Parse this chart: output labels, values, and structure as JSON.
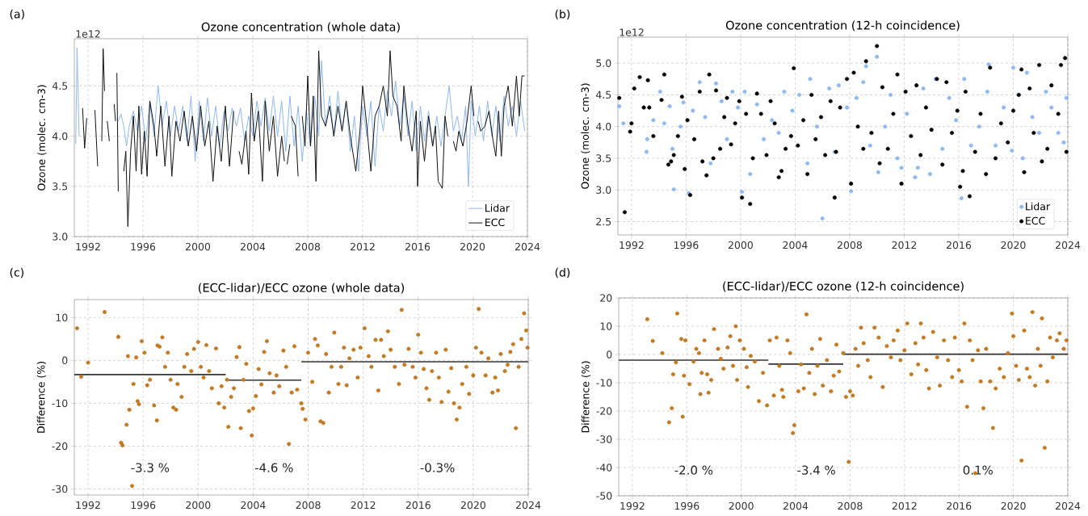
{
  "chart_data": [
    {
      "type": "line",
      "title": "Ozone concentration (whole data)",
      "ylabel": "Ozone (molec. cm-3)",
      "annotations": [
        "(a)",
        "1e12"
      ],
      "xlim": [
        1991,
        2024
      ],
      "ylim": [
        3.0,
        4.97
      ],
      "xticks": [
        1992,
        1996,
        2000,
        2004,
        2008,
        2012,
        2016,
        2020,
        2024
      ],
      "yticks": [
        {
          "value": 3.0,
          "label": "3.0"
        },
        {
          "value": 3.5,
          "label": "3.5"
        },
        {
          "value": 4.0,
          "label": "4.0"
        },
        {
          "value": 4.5,
          "label": "4.5"
        }
      ],
      "grid": true,
      "legend": "bottom right",
      "series": [
        {
          "name": "Lidar",
          "color": "#8fb8ee",
          "x": [
            1991.1,
            1991.2,
            1991.35,
            1991.5,
            1994.2,
            1994.4,
            1994.6,
            1994.8,
            1995.0,
            1995.3,
            1995.6,
            1995.9,
            1996.2,
            1996.5,
            1996.8,
            1997.1,
            1997.4,
            1997.7,
            1998.0,
            1998.3,
            1998.6,
            1998.9,
            1999.2,
            1999.5,
            1999.8,
            2000.1,
            2000.4,
            2000.7,
            2001.0,
            2001.3,
            2001.6,
            2001.9,
            2002.2,
            2002.5,
            2002.8,
            2003.1,
            2003.4,
            2003.7,
            2004.0,
            2004.3,
            2004.6,
            2004.9,
            2005.2,
            2005.5,
            2005.8,
            2006.1,
            2006.4,
            2006.7,
            2007.0,
            2007.3,
            2007.6,
            2007.9,
            2008.2,
            2008.5,
            2008.8,
            2009.0,
            2009.3,
            2009.6,
            2009.9,
            2010.2,
            2010.5,
            2010.8,
            2011.1,
            2011.4,
            2011.7,
            2012.0,
            2012.3,
            2012.6,
            2012.9,
            2013.2,
            2013.5,
            2013.8,
            2014.1,
            2014.4,
            2014.7,
            2015.0,
            2015.3,
            2015.6,
            2015.9,
            2016.2,
            2016.5,
            2016.8,
            2017.1,
            2017.4,
            2017.7,
            2018.0,
            2018.3,
            2018.6,
            2018.9,
            2019.2,
            2019.5,
            2019.7,
            2019.9,
            2020.2,
            2020.5,
            2020.8,
            2021.1,
            2021.4,
            2021.7,
            2022.0,
            2022.3,
            2022.6,
            2022.9,
            2023.2,
            2023.5,
            2023.8
          ],
          "values": [
            3.92,
            4.88,
            4.0,
            null,
            4.15,
            4.22,
            4.1,
            3.9,
            4.1,
            4.25,
            4.05,
            4.3,
            3.95,
            4.35,
            4.0,
            4.5,
            4.1,
            4.35,
            4.0,
            4.3,
            4.05,
            4.3,
            3.95,
            4.4,
            3.75,
            4.35,
            3.95,
            4.38,
            4.0,
            4.3,
            3.9,
            4.25,
            4.05,
            4.28,
            4.1,
            4.28,
            3.95,
            4.2,
            4.0,
            4.35,
            4.1,
            4.38,
            4.05,
            4.4,
            4.0,
            4.35,
            3.85,
            4.4,
            3.9,
            4.3,
            3.75,
            4.25,
            3.9,
            4.4,
            4.0,
            4.75,
            4.1,
            4.4,
            4.0,
            4.45,
            4.05,
            4.35,
            3.85,
            4.2,
            3.65,
            4.3,
            4.0,
            4.35,
            3.7,
            4.3,
            4.05,
            4.45,
            4.2,
            4.55,
            4.1,
            4.4,
            4.0,
            4.35,
            3.85,
            4.3,
            3.95,
            4.25,
            3.9,
            4.2,
            3.9,
            4.2,
            4.5,
            4.05,
            4.2,
            3.95,
            4.3,
            3.5,
            4.35,
            4.0,
            4.3,
            3.95,
            4.35,
            4.0,
            4.3,
            3.95,
            4.4,
            4.1,
            4.3,
            4.0,
            4.35,
            4.05
          ]
        },
        {
          "name": "ECC",
          "color": "#111111",
          "x": [
            1991.6,
            1991.75,
            1991.9,
            1992.1,
            1992.5,
            1992.7,
            1992.8,
            1993.0,
            1993.1,
            1993.2,
            1993.3,
            1993.4,
            1993.55,
            1993.7,
            1993.9,
            1994.0,
            1994.05,
            1994.1,
            1994.2,
            1994.4,
            1994.6,
            1994.75,
            1994.9,
            1995.1,
            1995.3,
            1995.5,
            1995.7,
            1995.9,
            1996.1,
            1996.3,
            1996.5,
            1996.8,
            1997.0,
            1997.3,
            1997.6,
            1997.9,
            1998.1,
            1998.4,
            1998.7,
            1999.0,
            1999.3,
            1999.6,
            1999.9,
            2000.2,
            2000.5,
            2000.8,
            2001.1,
            2001.4,
            2001.7,
            2002.0,
            2002.3,
            2002.6,
            2002.8,
            2003.0,
            2003.2,
            2003.5,
            2003.7,
            2003.9,
            2004.1,
            2004.4,
            2004.7,
            2004.9,
            2005.2,
            2005.5,
            2005.8,
            2006.1,
            2006.3,
            2006.45,
            2006.5,
            2006.7,
            2006.75,
            2006.8,
            2007.1,
            2007.3,
            2007.45,
            2007.6,
            2007.8,
            2008.0,
            2008.2,
            2008.4,
            2008.6,
            2008.8,
            2009.0,
            2009.3,
            2009.6,
            2009.9,
            2010.2,
            2010.5,
            2010.8,
            2011.1,
            2011.5,
            2011.8,
            2012.0,
            2012.3,
            2012.6,
            2012.9,
            2013.2,
            2013.5,
            2013.8,
            2014.0,
            2014.2,
            2014.5,
            2014.8,
            2015.0,
            2015.3,
            2015.6,
            2015.9,
            2016.0,
            2016.2,
            2016.5,
            2016.8,
            2017.1,
            2017.3,
            2017.5,
            2017.8,
            2018.0,
            2018.2,
            2018.4,
            2018.6,
            2018.8,
            2019.0,
            2019.3,
            2019.6,
            2019.9,
            2020.1,
            2020.25,
            2020.4,
            2020.6,
            2020.9,
            2021.2,
            2021.5,
            2021.7,
            2021.9,
            2022.1,
            2022.3,
            2022.6,
            2022.9,
            2023.2,
            2023.4,
            2023.6,
            2023.8
          ],
          "values": [
            4.28,
            3.88,
            4.18,
            null,
            4.26,
            3.7,
            null,
            3.95,
            4.87,
            4.45,
            null,
            4.15,
            3.95,
            null,
            4.32,
            4.15,
            null,
            4.63,
            3.45,
            null,
            3.65,
            3.85,
            3.1,
            3.85,
            4.2,
            3.65,
            4.3,
            3.62,
            4.05,
            3.6,
            4.35,
            4.1,
            3.8,
            4.3,
            3.7,
            4.2,
            3.6,
            4.15,
            3.95,
            4.25,
            3.9,
            4.2,
            3.85,
            4.3,
            3.9,
            4.15,
            3.55,
            4.1,
            3.75,
            4.3,
            3.7,
            4.25,
            null,
            3.85,
            3.72,
            4.05,
            3.62,
            4.43,
            3.95,
            4.25,
            3.55,
            4.35,
            3.85,
            4.2,
            3.6,
            4.0,
            3.75,
            null,
            3.72,
            3.92,
            null,
            4.2,
            4.1,
            3.6,
            null,
            4.2,
            3.9,
            4.6,
            3.9,
            4.4,
            3.55,
            4.85,
            4.2,
            4.1,
            4.3,
            4.0,
            4.3,
            4.05,
            4.35,
            4.0,
            3.65,
            4.05,
            4.5,
            4.1,
            3.65,
            4.2,
            4.3,
            4.5,
            4.2,
            4.85,
            4.4,
            4.3,
            3.95,
            4.5,
            4.1,
            3.85,
            4.25,
            3.5,
            4.15,
            3.75,
            4.2,
            3.9,
            4.1,
            3.55,
            3.48,
            4.2,
            4.0,
            null,
            3.95,
            3.85,
            4.05,
            3.9,
            4.15,
            4.5,
            4.2,
            null,
            4.15,
            4.05,
            4.1,
            4.25,
            3.95,
            3.8,
            4.25,
            3.8,
            4.3,
            4.5,
            4.1,
            4.6,
            4.2,
            4.6,
            4.6
          ]
        }
      ]
    },
    {
      "type": "scatter",
      "title": "Ozone concentration (12-h coincidence)",
      "ylabel": "Ozone (molec. cm-3)",
      "annotations": [
        "(b)",
        "1e12"
      ],
      "xlim": [
        1991,
        2024
      ],
      "ylim": [
        2.29,
        5.41
      ],
      "xticks": [
        1992,
        1996,
        2000,
        2004,
        2008,
        2012,
        2016,
        2020,
        2024
      ],
      "yticks": [
        {
          "value": 2.5,
          "label": "2.5"
        },
        {
          "value": 3.0,
          "label": "3.0"
        },
        {
          "value": 3.5,
          "label": "3.5"
        },
        {
          "value": 4.0,
          "label": "4.0"
        },
        {
          "value": 4.5,
          "label": "4.5"
        },
        {
          "value": 5.0,
          "label": "5.0"
        }
      ],
      "grid": true,
      "legend": "bottom right",
      "series": [
        {
          "name": "Lidar",
          "color": "#8fb8ee",
          "marker": "circle",
          "x": [
            1991.1,
            1991.4,
            1993.1,
            1993.15,
            1993.6,
            1994.1,
            1994.4,
            1994.8,
            1995.0,
            1995.1,
            1995.6,
            1995.8,
            1996.2,
            1996.5,
            1997.0,
            1997.4,
            1997.8,
            1998.2,
            1998.6,
            1999.0,
            1999.4,
            1999.8,
            2000.1,
            2000.3,
            2000.7,
            2001.2,
            2001.7,
            2002.3,
            2002.8,
            2003.2,
            2003.8,
            2004.3,
            2004.9,
            2005.1,
            2005.6,
            2006.0,
            2006.5,
            2006.9,
            2007.2,
            2007.8,
            2008.1,
            2008.5,
            2009.0,
            2009.2,
            2009.5,
            2010.0,
            2010.1,
            2010.6,
            2011.0,
            2011.5,
            2011.8,
            2012.2,
            2012.8,
            2013.0,
            2013.4,
            2013.9,
            2014.3,
            2014.8,
            2015.3,
            2015.8,
            2016.2,
            2016.4,
            2016.9,
            2017.5,
            2018.1,
            2018.2,
            2018.7,
            2019.3,
            2019.9,
            2020.0,
            2020.4,
            2020.7,
            2021.0,
            2021.4,
            2021.9,
            2022.4,
            2022.8,
            2023.3,
            2023.7,
            2023.9
          ],
          "values": [
            4.32,
            4.05,
            3.6,
            3.8,
            4.1,
            4.55,
            4.05,
            4.32,
            3.65,
            3.01,
            4.0,
            4.38,
            2.95,
            4.25,
            4.7,
            4.15,
            3.42,
            4.68,
            4.4,
            3.8,
            4.55,
            4.3,
            2.97,
            4.55,
            3.25,
            4.35,
            3.8,
            4.1,
            3.9,
            4.55,
            4.25,
            4.5,
            3.42,
            4.75,
            4.0,
            2.55,
            4.6,
            3.6,
            4.65,
            4.3,
            2.98,
            4.45,
            4.7,
            4.95,
            3.7,
            5.1,
            3.28,
            4.0,
            4.5,
            3.5,
            3.35,
            4.2,
            3.2,
            3.35,
            4.6,
            3.25,
            4.75,
            3.65,
            4.45,
            4.1,
            2.87,
            4.75,
            3.7,
            4.0,
            4.55,
            4.98,
            3.7,
            4.3,
            3.62,
            4.93,
            4.5,
            3.5,
            4.85,
            4.15,
            3.9,
            4.55,
            4.3,
            3.9,
            3.75,
            4.45
          ]
        },
        {
          "name": "ECC",
          "color": "#000000",
          "marker": "circle",
          "x": [
            1991.1,
            1991.5,
            1991.9,
            1992.0,
            1992.2,
            1992.6,
            1992.9,
            1993.2,
            1993.3,
            1993.6,
            1994.2,
            1994.4,
            1994.7,
            1994.9,
            1995.1,
            1995.4,
            1995.7,
            1995.9,
            1996.1,
            1996.3,
            1996.6,
            1997.0,
            1997.2,
            1997.5,
            1997.7,
            1998.0,
            1998.2,
            1998.5,
            1998.8,
            1999.0,
            1999.3,
            1999.6,
            1999.9,
            2000.1,
            2000.4,
            2000.7,
            2000.9,
            2001.2,
            2001.5,
            2001.9,
            2002.2,
            2002.5,
            2002.8,
            2003.0,
            2003.3,
            2003.7,
            2003.9,
            2004.2,
            2004.6,
            2004.9,
            2005.2,
            2005.5,
            2005.9,
            2006.2,
            2006.6,
            2006.9,
            2007.0,
            2007.3,
            2007.8,
            2008.1,
            2008.3,
            2008.6,
            2009.0,
            2009.2,
            2009.6,
            2010.0,
            2010.2,
            2010.4,
            2010.8,
            2011.2,
            2011.5,
            2011.8,
            2012.1,
            2012.5,
            2012.9,
            2013.2,
            2013.6,
            2014.0,
            2014.4,
            2014.8,
            2015.1,
            2015.5,
            2015.9,
            2016.1,
            2016.3,
            2016.5,
            2016.8,
            2017.2,
            2017.6,
            2018.0,
            2018.3,
            2018.7,
            2019.1,
            2019.6,
            2020.0,
            2020.4,
            2020.6,
            2020.8,
            2021.2,
            2021.5,
            2021.9,
            2022.1,
            2022.5,
            2022.8,
            2023.3,
            2023.5,
            2023.8,
            2023.9
          ],
          "values": [
            4.45,
            2.65,
            3.92,
            4.05,
            4.6,
            4.78,
            4.3,
            4.73,
            4.3,
            3.85,
            4.42,
            4.82,
            3.4,
            3.45,
            3.55,
            3.85,
            4.47,
            3.33,
            4.1,
            2.92,
            3.8,
            4.55,
            3.45,
            3.23,
            4.82,
            3.5,
            4.57,
            3.65,
            4.15,
            4.45,
            3.72,
            4.05,
            4.4,
            2.88,
            4.2,
            2.78,
            3.5,
            4.52,
            4.2,
            3.55,
            4.4,
            4.05,
            3.2,
            3.3,
            3.65,
            3.85,
            4.92,
            3.7,
            4.1,
            3.25,
            4.5,
            3.8,
            4.15,
            3.55,
            4.4,
            2.88,
            3.6,
            4.3,
            4.75,
            3.1,
            4.85,
            4.0,
            3.65,
            5.03,
            3.9,
            5.27,
            3.42,
            4.62,
            3.65,
            4.2,
            4.82,
            3.1,
            4.55,
            3.85,
            4.65,
            3.55,
            4.3,
            3.95,
            4.75,
            3.4,
            4.7,
            3.9,
            4.25,
            3.05,
            3.3,
            4.55,
            2.9,
            3.6,
            4.2,
            3.25,
            4.93,
            3.5,
            4.05,
            3.75,
            4.25,
            4.5,
            4.9,
            3.28,
            4.6,
            3.9,
            4.97,
            3.45,
            3.65,
            4.65,
            4.2,
            4.97,
            5.08,
            3.6
          ]
        }
      ]
    },
    {
      "type": "scatter",
      "title": "(ECC-lidar)/ECC ozone (whole data)",
      "ylabel": "Difference (%)",
      "annotations": [
        "(c)",
        "-3.3 %",
        "-4.6 %",
        "-0.3%"
      ],
      "xlim": [
        1991,
        2024
      ],
      "ylim": [
        -31.4,
        14.2
      ],
      "xticks": [
        1992,
        1996,
        2000,
        2004,
        2008,
        2012,
        2016,
        2020,
        2024
      ],
      "yticks": [
        -30,
        -20,
        -10,
        0,
        10
      ],
      "grid": true,
      "series": [
        {
          "color": "#c07a24",
          "marker": "circle",
          "x": [
            1991.2,
            1991.5,
            1992.0,
            1993.2,
            1994.2,
            1994.4,
            1994.5,
            1994.8,
            1995.0,
            1994.9,
            1995.2,
            1995.3,
            1995.5,
            1995.6,
            1995.7,
            1995.9,
            1996.1,
            1996.3,
            1996.5,
            1996.8,
            1997.0,
            1997.05,
            1997.2,
            1997.4,
            1997.6,
            1997.8,
            1998.0,
            1998.2,
            1998.4,
            1998.5,
            1998.8,
            1999.0,
            1999.2,
            1999.5,
            1999.7,
            2000.0,
            2000.2,
            2000.4,
            2000.6,
            2000.8,
            2001.0,
            2001.3,
            2001.5,
            2001.7,
            2001.9,
            2002.1,
            2002.2,
            2002.4,
            2002.6,
            2002.8,
            2003.0,
            2003.1,
            2003.3,
            2003.5,
            2003.7,
            2003.9,
            2004.0,
            2004.2,
            2004.4,
            2004.6,
            2004.8,
            2005.0,
            2005.2,
            2005.5,
            2005.7,
            2005.9,
            2006.2,
            2006.4,
            2006.6,
            2006.8,
            2007.0,
            2007.2,
            2007.5,
            2007.6,
            2007.8,
            2008.0,
            2008.3,
            2008.5,
            2008.7,
            2008.9,
            2009.1,
            2009.3,
            2009.5,
            2009.7,
            2009.9,
            2010.2,
            2010.4,
            2010.6,
            2010.8,
            2011.0,
            2011.3,
            2011.6,
            2011.8,
            2012.1,
            2012.4,
            2012.6,
            2012.9,
            2013.1,
            2013.3,
            2013.5,
            2013.8,
            2014.0,
            2014.3,
            2014.6,
            2014.8,
            2015.0,
            2015.3,
            2015.6,
            2015.8,
            2016.0,
            2016.2,
            2016.4,
            2016.6,
            2016.8,
            2017.0,
            2017.3,
            2017.5,
            2017.7,
            2018.0,
            2018.2,
            2018.4,
            2018.6,
            2018.8,
            2019.0,
            2019.2,
            2019.5,
            2019.7,
            2020.0,
            2020.2,
            2020.4,
            2020.6,
            2020.9,
            2021.1,
            2021.4,
            2021.6,
            2021.8,
            2022.0,
            2022.3,
            2022.5,
            2022.7,
            2022.9,
            2023.1,
            2023.3,
            2023.5,
            2023.7,
            2023.85,
            2023.95
          ],
          "values": [
            7.5,
            -3.8,
            -0.5,
            11.3,
            5.5,
            -19.2,
            -19.8,
            -15,
            -11.5,
            1.0,
            -29.3,
            -5.5,
            0.7,
            -9.5,
            -10.2,
            4.5,
            1.8,
            -5.8,
            -4.5,
            -10.5,
            -14,
            3.5,
            3.2,
            5.4,
            -1.5,
            1.8,
            -4.5,
            -11,
            -11.5,
            -5.5,
            -8.5,
            -1.5,
            1.5,
            -2.5,
            2.7,
            4.3,
            -1.5,
            -4,
            3.6,
            -2.5,
            -6.5,
            2.8,
            -10,
            -6,
            -11,
            -4.5,
            -15.5,
            -8.5,
            -6.5,
            0.8,
            3.1,
            -15.8,
            -4.5,
            -0.8,
            -11.8,
            -17.5,
            -11.2,
            -8.3,
            -2,
            -5.6,
            2,
            4.5,
            -3,
            -7.5,
            -3.5,
            -6,
            2.3,
            -1.5,
            -19.5,
            -7.5,
            3.3,
            -6.8,
            -10,
            -11.3,
            -13.8,
            1.8,
            -5,
            5,
            3.5,
            -14.2,
            -14.6,
            1.5,
            -7.5,
            -1.5,
            6.5,
            -5.5,
            -1.5,
            3,
            -5.8,
            0.5,
            2.5,
            -4,
            3,
            7.5,
            1,
            -1.5,
            4.8,
            -7,
            4.8,
            1,
            6.8,
            2.5,
            -1.5,
            -5.5,
            11.8,
            -1,
            2.7,
            -1.5,
            -4,
            6,
            1.8,
            -2,
            -6.5,
            -9.2,
            -2.5,
            1.8,
            -4,
            -9.7,
            2.5,
            -7.3,
            -1.8,
            -10,
            -13.8,
            -11,
            -5.5,
            -1.5,
            -7.8,
            -3.5,
            3,
            12,
            1.8,
            -3.5,
            0.5,
            -7.5,
            -4,
            -7,
            1.5,
            -2.5,
            -1,
            2,
            3.8,
            -15.8,
            -1.5,
            5,
            11,
            7,
            3
          ]
        },
        {
          "type": "line",
          "marker": "none",
          "color": "#333333",
          "x": [
            1991,
            2002
          ],
          "values": [
            -3.3,
            -3.3
          ]
        },
        {
          "type": "line",
          "marker": "none",
          "color": "#333333",
          "x": [
            2002,
            2007.5
          ],
          "values": [
            -4.6,
            -4.6
          ]
        },
        {
          "type": "line",
          "marker": "none",
          "color": "#333333",
          "x": [
            2007.5,
            2024
          ],
          "values": [
            -0.3,
            -0.3
          ]
        }
      ]
    },
    {
      "type": "scatter",
      "title": "(ECC-lidar)/ECC ozone (12-h coincidence)",
      "ylabel": "Difference (%)",
      "annotations": [
        "(d)",
        "-2.0 %",
        "-3.4 %",
        "0.1%"
      ],
      "xlim": [
        1991,
        2024
      ],
      "ylim": [
        -50,
        20
      ],
      "xticks": [
        1992,
        1996,
        2000,
        2004,
        2008,
        2012,
        2016,
        2020,
        2024
      ],
      "yticks": [
        -50,
        -40,
        -30,
        -20,
        -10,
        0,
        10,
        20
      ],
      "grid": true,
      "series": [
        {
          "color": "#c07a24",
          "marker": "circle",
          "x": [
            1993.1,
            1993.5,
            1994.2,
            1994.7,
            1994.9,
            1995.0,
            1995.2,
            1995.3,
            1995.6,
            1995.7,
            1995.8,
            1995.9,
            1996.2,
            1996.5,
            1996.7,
            1996.9,
            1997.0,
            1997.1,
            1997.3,
            1997.5,
            1997.6,
            1997.8,
            1998.0,
            1998.3,
            1998.5,
            1998.7,
            1999.0,
            1999.2,
            1999.4,
            1999.6,
            1999.7,
            1999.9,
            2000.2,
            2000.4,
            2000.5,
            2000.7,
            2001.0,
            2001.3,
            2001.6,
            2001.9,
            2002.1,
            2002.4,
            2002.6,
            2002.8,
            2003.0,
            2003.1,
            2003.4,
            2003.6,
            2003.8,
            2003.9,
            2004.2,
            2004.4,
            2004.6,
            2004.8,
            2005.0,
            2005.2,
            2005.4,
            2005.6,
            2005.8,
            2006.0,
            2006.3,
            2006.6,
            2006.8,
            2007.0,
            2007.2,
            2007.5,
            2007.7,
            2007.9,
            2008.0,
            2008.2,
            2008.4,
            2008.6,
            2008.8,
            2009.0,
            2009.3,
            2009.5,
            2009.8,
            2010.1,
            2010.4,
            2010.7,
            2011.0,
            2011.2,
            2011.5,
            2011.7,
            2012.0,
            2012.2,
            2012.5,
            2012.8,
            2013.0,
            2013.2,
            2013.4,
            2013.6,
            2013.8,
            2014.1,
            2014.4,
            2014.6,
            2014.9,
            2015.2,
            2015.5,
            2015.7,
            2016.0,
            2016.2,
            2016.4,
            2016.6,
            2016.8,
            2017.0,
            2017.2,
            2017.4,
            2017.6,
            2017.8,
            2018.0,
            2018.3,
            2018.5,
            2018.7,
            2019.0,
            2019.3,
            2019.6,
            2019.9,
            2020.0,
            2020.2,
            2020.4,
            2020.6,
            2020.8,
            2021.0,
            2021.2,
            2021.4,
            2021.6,
            2021.8,
            2022.0,
            2022.1,
            2022.3,
            2022.5,
            2022.7,
            2022.9,
            2023.2,
            2023.4,
            2023.7,
            2023.9
          ],
          "values": [
            12.5,
            4.8,
            0.5,
            -24,
            -19,
            -7,
            -2.8,
            14.5,
            5.5,
            -22,
            -7.5,
            5,
            -10.5,
            -2.5,
            2,
            0.5,
            -14,
            -6.5,
            5,
            -7,
            -13.5,
            -9,
            9,
            2,
            -1.5,
            -5,
            2.5,
            6.5,
            -4,
            10,
            -9,
            5,
            2,
            -4.5,
            -11.5,
            -0.5,
            -2.5,
            -16.5,
            -6.5,
            -18,
            5,
            -14.5,
            6,
            -4,
            -12.5,
            -15,
            5,
            0.5,
            -27.8,
            -25,
            -13,
            -3.5,
            -12,
            14.2,
            -6.5,
            2,
            -14,
            -4,
            5.5,
            -11,
            -2,
            -13,
            -7.5,
            3.5,
            -6,
            0.5,
            -15,
            -38,
            -13,
            -14.5,
            2,
            -4,
            9.5,
            4,
            -2,
            -8,
            9.5,
            6,
            -11.5,
            3,
            -1,
            5,
            8.5,
            -2,
            1.5,
            11,
            -7,
            4,
            -3.5,
            11,
            6,
            -5.5,
            -12,
            8,
            -1,
            -11,
            5,
            -2,
            -8,
            6,
            -5.5,
            -9.5,
            11,
            -18.5,
            5,
            -2,
            -42,
            1.5,
            -9.5,
            -19,
            2,
            -9.5,
            -26,
            -12,
            -5,
            -8,
            0.5,
            14.5,
            6.5,
            -4,
            -9,
            -37.5,
            8.5,
            -5,
            -8,
            15,
            -11,
            2,
            -4,
            12.8,
            -33,
            -9.5,
            6,
            -1,
            5,
            7.5,
            2,
            5
          ]
        },
        {
          "type": "line",
          "marker": "none",
          "color": "#333333",
          "x": [
            1991,
            2002
          ],
          "values": [
            -2.0,
            -2.0
          ]
        },
        {
          "type": "line",
          "marker": "none",
          "color": "#333333",
          "x": [
            2002,
            2007.5
          ],
          "values": [
            -3.4,
            -3.4
          ]
        },
        {
          "type": "line",
          "marker": "none",
          "color": "#333333",
          "x": [
            2007.5,
            2024
          ],
          "values": [
            0.1,
            0.1
          ]
        }
      ]
    }
  ]
}
